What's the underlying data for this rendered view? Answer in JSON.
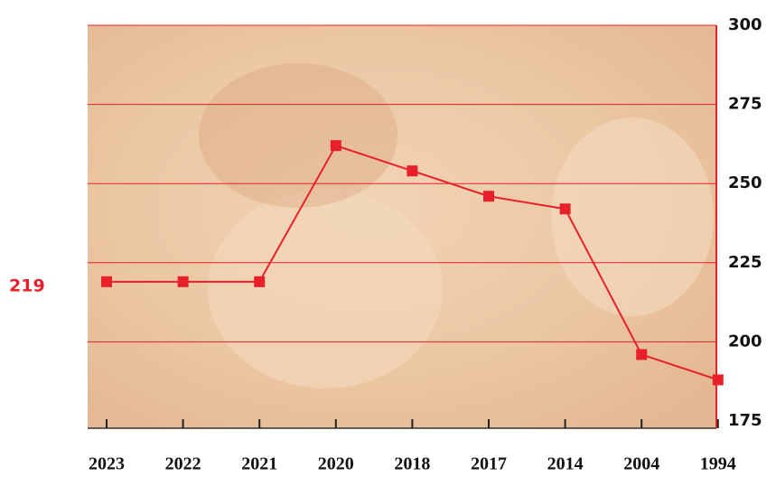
{
  "chart_data": {
    "type": "line",
    "categories": [
      "2023",
      "2022",
      "2021",
      "2020",
      "2018",
      "2017",
      "2014",
      "2004",
      "1994"
    ],
    "series": [
      {
        "color": "#e8202a",
        "values": [
          219,
          219,
          219,
          262,
          254,
          246,
          242,
          196,
          188
        ]
      }
    ],
    "ylim": [
      175,
      300
    ],
    "yticks": [
      175,
      200,
      225,
      250,
      275,
      300
    ],
    "grid": true
  }
}
